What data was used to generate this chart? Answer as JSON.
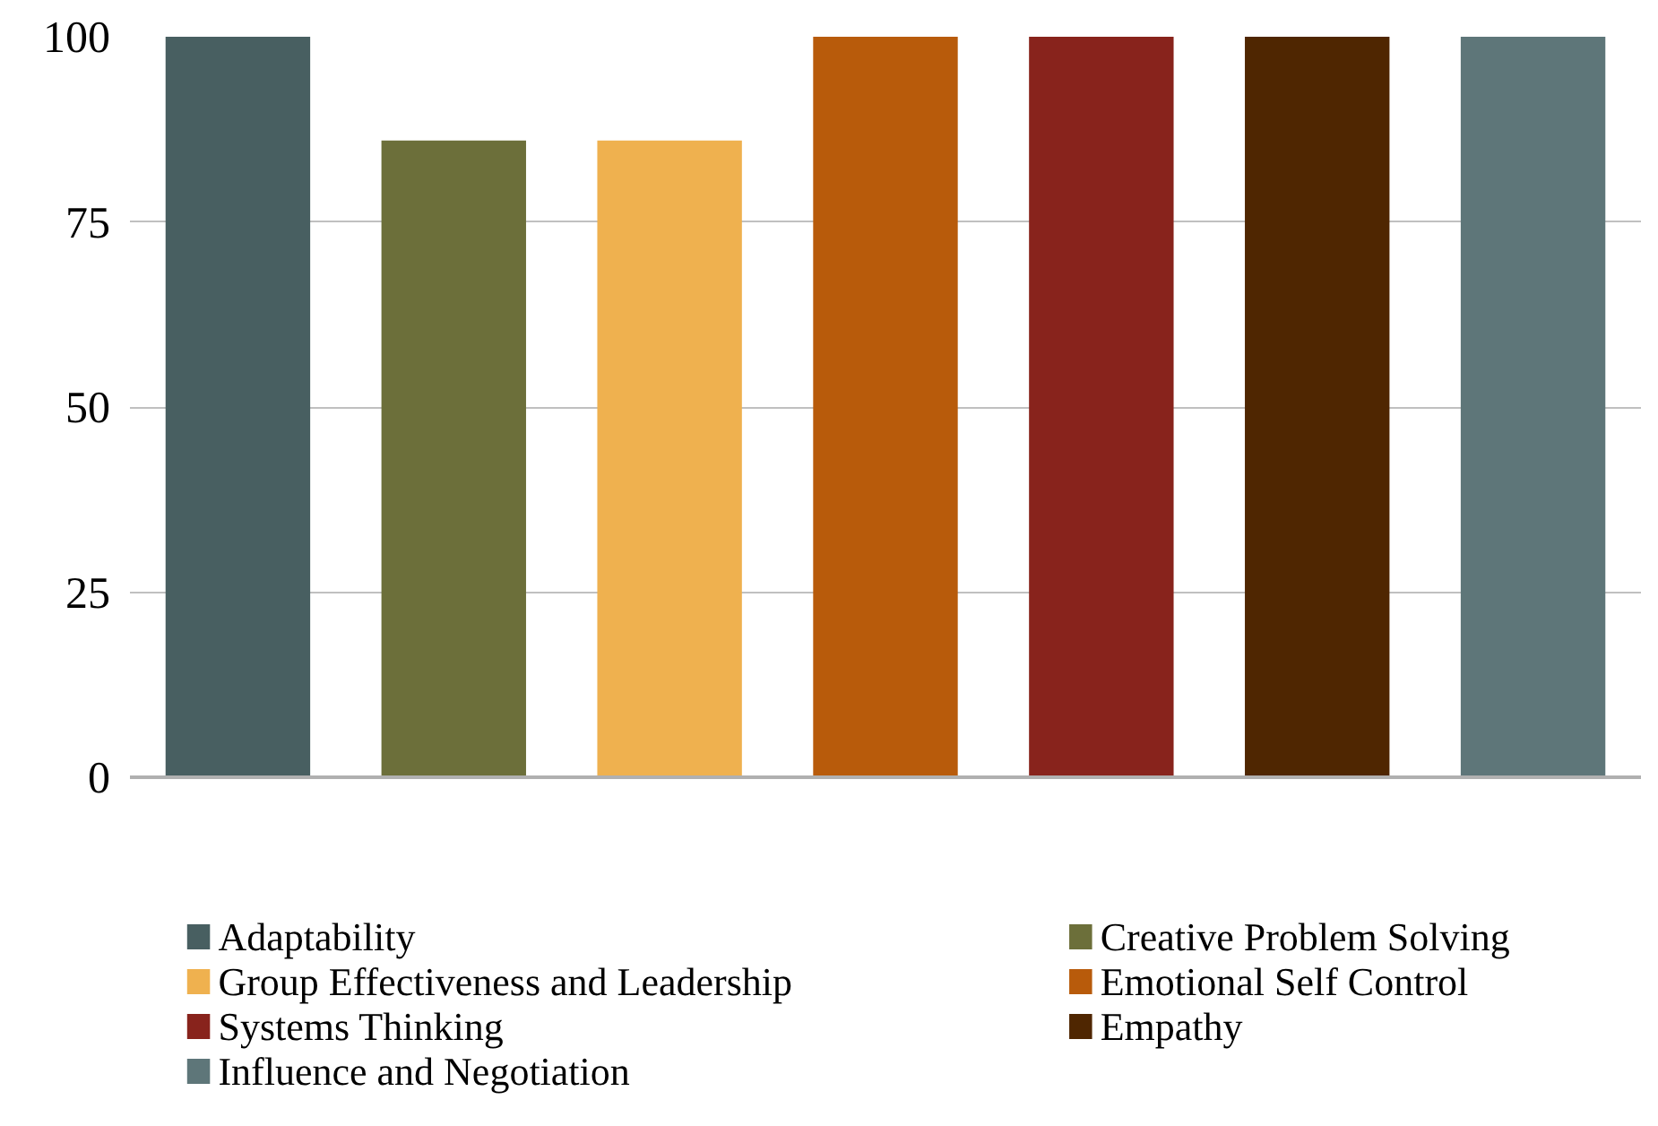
{
  "chart_data": {
    "type": "bar",
    "categories": [
      null
    ],
    "series": [
      {
        "name": "Adaptability",
        "color": "#485f61",
        "values": [
          100
        ]
      },
      {
        "name": "Creative Problem Solving",
        "color": "#6c6f3a",
        "values": [
          86
        ]
      },
      {
        "name": "Group Effectiveness and Leadership",
        "color": "#efb14f",
        "values": [
          86
        ]
      },
      {
        "name": "Emotional Self Control",
        "color": "#b85b0b",
        "values": [
          100
        ]
      },
      {
        "name": "Systems Thinking",
        "color": "#88231c",
        "values": [
          100
        ]
      },
      {
        "name": "Empathy",
        "color": "#4f2601",
        "values": [
          100
        ]
      },
      {
        "name": "Influence and Negotiation",
        "color": "#5e7679",
        "values": [
          100
        ]
      }
    ],
    "ylim": [
      0,
      100
    ],
    "yticks": [
      0,
      25,
      50,
      75,
      100
    ],
    "grid": "y",
    "legend": "bottom"
  }
}
